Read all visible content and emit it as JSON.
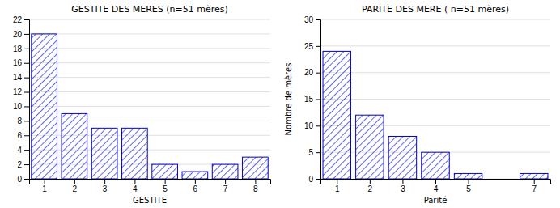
{
  "chart_data": [
    {
      "type": "bar",
      "title": "GESTITE DES MERES (n=51 mères)",
      "xlabel": "GESTITE",
      "x": [
        1,
        2,
        3,
        4,
        5,
        6,
        7,
        8
      ],
      "values": [
        20,
        9,
        7,
        7,
        2,
        1,
        2,
        3
      ],
      "xlim": [
        0.5,
        8.5
      ],
      "xticks": [
        1,
        2,
        3,
        4,
        5,
        6,
        7,
        8
      ],
      "ylim": [
        0,
        22
      ],
      "yticks": [
        0,
        2,
        4,
        6,
        8,
        10,
        12,
        14,
        16,
        18,
        20,
        22
      ],
      "color": "#0000cc",
      "grid": true
    },
    {
      "type": "bar",
      "title": "PARITE DES MERE ( n=51 mères)",
      "xlabel": "Parité",
      "ylabel": "Nombre de mères",
      "x": [
        1,
        2,
        3,
        4,
        5,
        7
      ],
      "values": [
        24,
        12,
        8,
        5,
        1,
        1
      ],
      "xlim": [
        0.5,
        7.5
      ],
      "xticks": [
        1,
        2,
        3,
        4,
        5,
        7
      ],
      "ylim": [
        0,
        30
      ],
      "yticks": [
        0,
        5,
        10,
        15,
        20,
        25,
        30
      ],
      "color": "#0000cc",
      "grid": true
    }
  ]
}
